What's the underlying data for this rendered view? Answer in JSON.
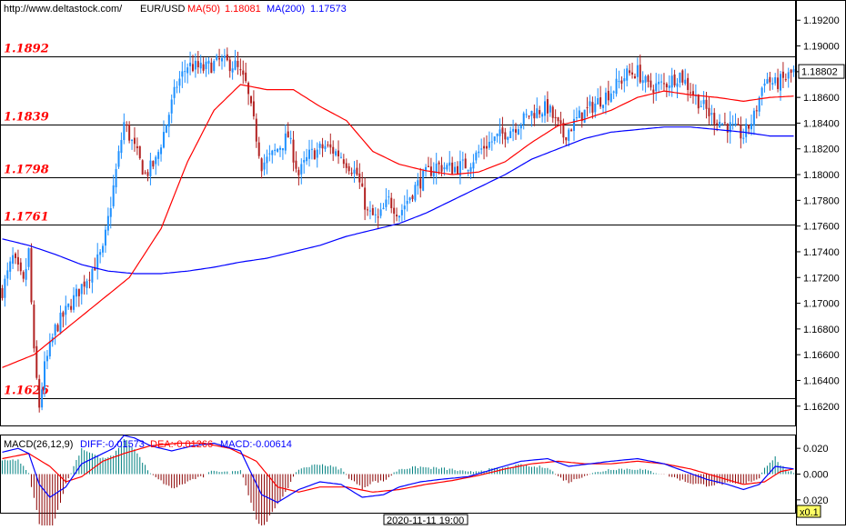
{
  "header": {
    "url": "http://www.deltastock.com/",
    "symbol": "EUR/USD",
    "ma50_label": "MA(50)",
    "ma50_value": "1.18081",
    "ma200_label": "MA(200)",
    "ma200_value": "1.17573",
    "colors": {
      "ma50": "#ff0000",
      "ma200": "#0000ff",
      "up": "#1e90ff",
      "down": "#b22222"
    }
  },
  "macd_header": {
    "label": "MACD(26,12,9)",
    "diff": "DIFF:-0.01573",
    "dea": "DEA:-0.01266",
    "macd": "MACD:-0.00614"
  },
  "footer": {
    "time_label": "2020-11-11 19:00",
    "zoom_label": "x0.1"
  },
  "chart_data": [
    {
      "type": "line",
      "name": "price-panel",
      "ylim": [
        1.1605,
        1.1935
      ],
      "y_ticks": [
        "1.19200",
        "1.19000",
        "1.18800",
        "1.18600",
        "1.18400",
        "1.18200",
        "1.18000",
        "1.17800",
        "1.17600",
        "1.17400",
        "1.17200",
        "1.17000",
        "1.16800",
        "1.16600",
        "1.16400",
        "1.16200"
      ],
      "y_tick_values": [
        1.192,
        1.19,
        1.188,
        1.186,
        1.184,
        1.182,
        1.18,
        1.178,
        1.176,
        1.174,
        1.172,
        1.17,
        1.168,
        1.166,
        1.164,
        1.162
      ],
      "last_price": "1.18802",
      "last_price_value": 1.18802,
      "levels": [
        {
          "label": "1.1892",
          "value": 1.1892
        },
        {
          "label": "1.1839",
          "value": 1.1839
        },
        {
          "label": "1.1798",
          "value": 1.1798
        },
        {
          "label": "1.1761",
          "value": 1.1761
        },
        {
          "label": "1.1626",
          "value": 1.1626
        }
      ],
      "bar_count": 300,
      "close_path": [
        [
          0,
          1.171
        ],
        [
          4,
          1.1735
        ],
        [
          8,
          1.1715
        ],
        [
          10,
          1.174
        ],
        [
          12,
          1.166
        ],
        [
          14,
          1.162
        ],
        [
          16,
          1.165
        ],
        [
          20,
          1.168
        ],
        [
          26,
          1.17
        ],
        [
          32,
          1.172
        ],
        [
          38,
          1.174
        ],
        [
          42,
          1.179
        ],
        [
          46,
          1.184
        ],
        [
          50,
          1.182
        ],
        [
          54,
          1.18
        ],
        [
          58,
          1.181
        ],
        [
          62,
          1.184
        ],
        [
          66,
          1.187
        ],
        [
          70,
          1.1885
        ],
        [
          76,
          1.1882
        ],
        [
          82,
          1.1888
        ],
        [
          88,
          1.1885
        ],
        [
          92,
          1.187
        ],
        [
          95,
          1.184
        ],
        [
          98,
          1.1808
        ],
        [
          102,
          1.1815
        ],
        [
          108,
          1.183
        ],
        [
          112,
          1.18
        ],
        [
          116,
          1.1815
        ],
        [
          122,
          1.1822
        ],
        [
          128,
          1.1815
        ],
        [
          134,
          1.18
        ],
        [
          138,
          1.177
        ],
        [
          142,
          1.1765
        ],
        [
          146,
          1.178
        ],
        [
          150,
          1.177
        ],
        [
          156,
          1.179
        ],
        [
          160,
          1.18
        ],
        [
          164,
          1.1807
        ],
        [
          170,
          1.1805
        ],
        [
          176,
          1.1808
        ],
        [
          182,
          1.1822
        ],
        [
          188,
          1.183
        ],
        [
          194,
          1.1838
        ],
        [
          200,
          1.1848
        ],
        [
          206,
          1.1852
        ],
        [
          212,
          1.183
        ],
        [
          218,
          1.1845
        ],
        [
          224,
          1.1855
        ],
        [
          230,
          1.1865
        ],
        [
          236,
          1.1878
        ],
        [
          240,
          1.188
        ],
        [
          244,
          1.1868
        ],
        [
          250,
          1.187
        ],
        [
          256,
          1.1878
        ],
        [
          262,
          1.186
        ],
        [
          268,
          1.1845
        ],
        [
          274,
          1.1838
        ],
        [
          280,
          1.183
        ],
        [
          284,
          1.1845
        ],
        [
          288,
          1.1875
        ],
        [
          292,
          1.187
        ],
        [
          296,
          1.1875
        ],
        [
          299,
          1.188
        ]
      ],
      "ma50_path": [
        [
          0,
          1.165
        ],
        [
          12,
          1.166
        ],
        [
          30,
          1.169
        ],
        [
          48,
          1.172
        ],
        [
          60,
          1.1758
        ],
        [
          70,
          1.181
        ],
        [
          80,
          1.185
        ],
        [
          90,
          1.187
        ],
        [
          100,
          1.1866
        ],
        [
          110,
          1.1866
        ],
        [
          120,
          1.1853
        ],
        [
          130,
          1.1842
        ],
        [
          140,
          1.1818
        ],
        [
          150,
          1.1808
        ],
        [
          160,
          1.1803
        ],
        [
          170,
          1.18
        ],
        [
          180,
          1.1802
        ],
        [
          190,
          1.181
        ],
        [
          200,
          1.1825
        ],
        [
          210,
          1.1838
        ],
        [
          220,
          1.1843
        ],
        [
          230,
          1.185
        ],
        [
          240,
          1.186
        ],
        [
          250,
          1.1865
        ],
        [
          260,
          1.1862
        ],
        [
          270,
          1.186
        ],
        [
          280,
          1.1857
        ],
        [
          290,
          1.186
        ],
        [
          299,
          1.1861
        ]
      ],
      "ma200_path": [
        [
          0,
          1.175
        ],
        [
          10,
          1.1745
        ],
        [
          20,
          1.1738
        ],
        [
          30,
          1.173
        ],
        [
          40,
          1.1725
        ],
        [
          50,
          1.1723
        ],
        [
          60,
          1.1723
        ],
        [
          70,
          1.1725
        ],
        [
          80,
          1.1728
        ],
        [
          90,
          1.1732
        ],
        [
          100,
          1.1735
        ],
        [
          110,
          1.174
        ],
        [
          120,
          1.1745
        ],
        [
          130,
          1.1752
        ],
        [
          140,
          1.1757
        ],
        [
          150,
          1.1762
        ],
        [
          160,
          1.177
        ],
        [
          170,
          1.178
        ],
        [
          180,
          1.179
        ],
        [
          190,
          1.18
        ],
        [
          200,
          1.1812
        ],
        [
          210,
          1.182
        ],
        [
          220,
          1.1828
        ],
        [
          230,
          1.1833
        ],
        [
          240,
          1.1835
        ],
        [
          250,
          1.1837
        ],
        [
          260,
          1.1837
        ],
        [
          270,
          1.1835
        ],
        [
          280,
          1.1833
        ],
        [
          290,
          1.183
        ],
        [
          299,
          1.183
        ]
      ]
    },
    {
      "type": "line",
      "name": "macd-panel",
      "ylim": [
        -0.03,
        0.03
      ],
      "y_ticks": [
        "0.020",
        "0.000",
        "0.020"
      ],
      "y_tick_values": [
        0.02,
        0.0,
        -0.02
      ],
      "diff_path": [
        [
          0,
          0.017
        ],
        [
          6,
          0.02
        ],
        [
          10,
          0.016
        ],
        [
          14,
          -0.008
        ],
        [
          18,
          -0.018
        ],
        [
          24,
          -0.01
        ],
        [
          30,
          0.008
        ],
        [
          36,
          0.014
        ],
        [
          42,
          0.02
        ],
        [
          46,
          0.03
        ],
        [
          50,
          0.028
        ],
        [
          56,
          0.022
        ],
        [
          64,
          0.018
        ],
        [
          72,
          0.022
        ],
        [
          80,
          0.024
        ],
        [
          90,
          0.018
        ],
        [
          98,
          -0.016
        ],
        [
          104,
          -0.022
        ],
        [
          112,
          -0.012
        ],
        [
          120,
          -0.006
        ],
        [
          128,
          -0.008
        ],
        [
          136,
          -0.018
        ],
        [
          144,
          -0.016
        ],
        [
          150,
          -0.01
        ],
        [
          158,
          -0.006
        ],
        [
          166,
          -0.004
        ],
        [
          176,
          -0.002
        ],
        [
          186,
          0.004
        ],
        [
          196,
          0.01
        ],
        [
          206,
          0.012
        ],
        [
          214,
          0.006
        ],
        [
          222,
          0.008
        ],
        [
          230,
          0.01
        ],
        [
          240,
          0.012
        ],
        [
          250,
          0.008
        ],
        [
          258,
          0.002
        ],
        [
          266,
          -0.004
        ],
        [
          274,
          -0.008
        ],
        [
          280,
          -0.012
        ],
        [
          286,
          -0.008
        ],
        [
          292,
          0.006
        ],
        [
          299,
          0.004
        ]
      ],
      "dea_path": [
        [
          0,
          0.012
        ],
        [
          10,
          0.016
        ],
        [
          18,
          0.006
        ],
        [
          24,
          -0.006
        ],
        [
          30,
          -0.002
        ],
        [
          38,
          0.01
        ],
        [
          46,
          0.016
        ],
        [
          56,
          0.022
        ],
        [
          66,
          0.024
        ],
        [
          76,
          0.024
        ],
        [
          86,
          0.02
        ],
        [
          96,
          0.01
        ],
        [
          104,
          -0.01
        ],
        [
          112,
          -0.014
        ],
        [
          120,
          -0.01
        ],
        [
          130,
          -0.01
        ],
        [
          140,
          -0.014
        ],
        [
          150,
          -0.012
        ],
        [
          160,
          -0.008
        ],
        [
          170,
          -0.005
        ],
        [
          180,
          -0.001
        ],
        [
          190,
          0.004
        ],
        [
          200,
          0.008
        ],
        [
          210,
          0.01
        ],
        [
          220,
          0.008
        ],
        [
          230,
          0.008
        ],
        [
          240,
          0.01
        ],
        [
          250,
          0.008
        ],
        [
          260,
          0.004
        ],
        [
          270,
          -0.002
        ],
        [
          280,
          -0.008
        ],
        [
          288,
          -0.006
        ],
        [
          294,
          0.002
        ],
        [
          299,
          0.004
        ]
      ]
    }
  ]
}
